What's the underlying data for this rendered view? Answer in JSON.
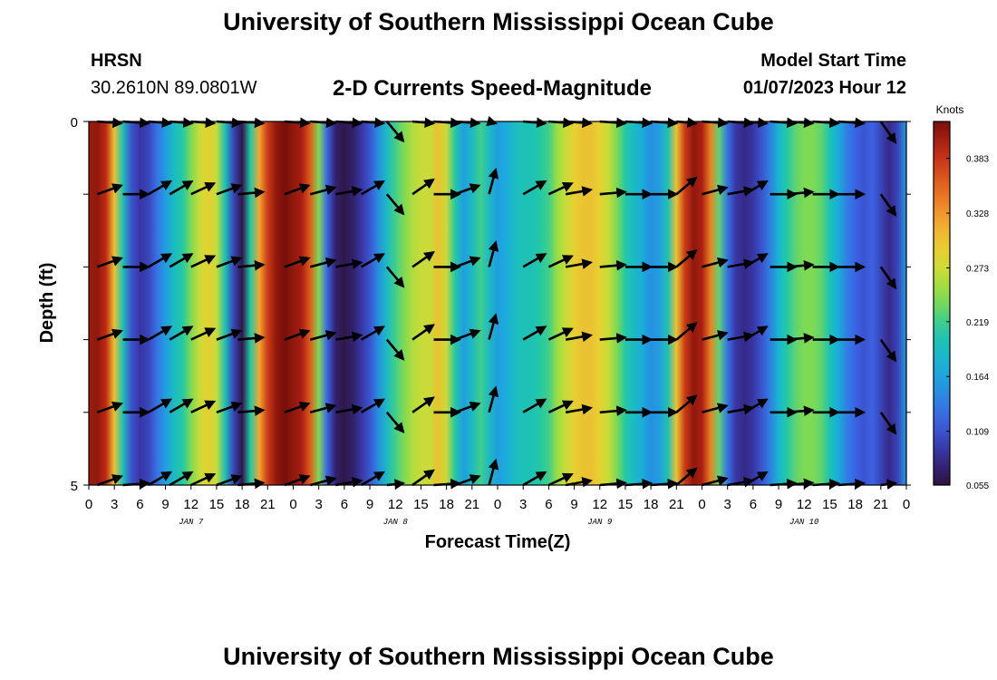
{
  "header": {
    "title": "University of Southern Mississippi Ocean Cube",
    "station": "HRSN",
    "coords": "30.2610N  89.0801W",
    "plot_title": "2-D Currents Speed-Magnitude",
    "model_start_label": "Model Start Time",
    "model_start_value": "01/07/2023 Hour 12"
  },
  "footer": {
    "title": "University of Southern Mississippi Ocean Cube"
  },
  "chart_data": {
    "type": "heatmap",
    "title": "2-D Currents Speed-Magnitude",
    "xlabel": "Forecast Time(Z)",
    "ylabel": "Depth (ft)",
    "ylim": [
      0,
      5
    ],
    "y_tick_labels": [
      "0",
      "5"
    ],
    "x_tick_labels": [
      "0",
      "3",
      "6",
      "9",
      "12",
      "15",
      "18",
      "21",
      "0",
      "3",
      "6",
      "9",
      "12",
      "15",
      "18",
      "21",
      "0",
      "3",
      "6",
      "9",
      "12",
      "15",
      "18",
      "21",
      "0",
      "3",
      "6",
      "9",
      "12",
      "15",
      "18",
      "21",
      "0"
    ],
    "day_labels": [
      {
        "label": "JAN 7",
        "hour": 12
      },
      {
        "label": "JAN 8",
        "hour": 36
      },
      {
        "label": "JAN 9",
        "hour": 60
      },
      {
        "label": "JAN 10",
        "hour": 84
      }
    ],
    "colorbar": {
      "units": "Knots",
      "min": 0.055,
      "max": 0.42,
      "tick_labels": [
        "0.383",
        "0.328",
        "0.273",
        "0.219",
        "0.164",
        "0.109",
        "0.055"
      ],
      "tick_values": [
        0.383,
        0.328,
        0.273,
        0.219,
        0.164,
        0.109,
        0.055
      ]
    },
    "speed_profile": {
      "hours": [
        0,
        1,
        2,
        3,
        4,
        5,
        6,
        7,
        8,
        9,
        10,
        11,
        12,
        13,
        14,
        15,
        16,
        17,
        18,
        19,
        20,
        21,
        22,
        23,
        24,
        25,
        26,
        27,
        28,
        29,
        30,
        31,
        32,
        33,
        34,
        35,
        36,
        37,
        38,
        39,
        40,
        41,
        42,
        43,
        44,
        45,
        46,
        47,
        48,
        49,
        50,
        51,
        52,
        53,
        54,
        55,
        56,
        57,
        58,
        59,
        60,
        61,
        62,
        63,
        64,
        65,
        66,
        67,
        68,
        69,
        70,
        71,
        72,
        73,
        74,
        75,
        76,
        77,
        78,
        79,
        80,
        81,
        82,
        83,
        84,
        85,
        86,
        87,
        88,
        89,
        90,
        91,
        92,
        93,
        94,
        95,
        96
      ],
      "knots": [
        0.405,
        0.41,
        0.39,
        0.3,
        0.2,
        0.11,
        0.09,
        0.1,
        0.13,
        0.16,
        0.19,
        0.21,
        0.24,
        0.27,
        0.29,
        0.27,
        0.2,
        0.1,
        0.06,
        0.21,
        0.32,
        0.38,
        0.41,
        0.42,
        0.41,
        0.4,
        0.36,
        0.24,
        0.12,
        0.07,
        0.06,
        0.07,
        0.09,
        0.11,
        0.15,
        0.19,
        0.22,
        0.24,
        0.26,
        0.27,
        0.27,
        0.3,
        0.27,
        0.21,
        0.16,
        0.19,
        0.22,
        0.19,
        0.16,
        0.17,
        0.19,
        0.2,
        0.2,
        0.21,
        0.22,
        0.25,
        0.27,
        0.29,
        0.3,
        0.3,
        0.29,
        0.27,
        0.24,
        0.21,
        0.19,
        0.17,
        0.15,
        0.16,
        0.2,
        0.3,
        0.38,
        0.41,
        0.4,
        0.34,
        0.23,
        0.13,
        0.09,
        0.08,
        0.09,
        0.11,
        0.14,
        0.18,
        0.21,
        0.23,
        0.24,
        0.24,
        0.23,
        0.2,
        0.17,
        0.14,
        0.12,
        0.11,
        0.12,
        0.1,
        0.08,
        0.1,
        0.16
      ]
    },
    "vectors": {
      "depths": [
        0,
        1,
        2,
        3,
        4,
        5
      ],
      "hours": [
        1,
        4,
        7,
        9.5,
        12,
        15,
        17.5,
        23,
        26,
        29,
        32,
        35,
        38,
        40.5,
        43,
        47,
        51,
        54,
        56,
        60,
        63,
        66,
        69,
        72,
        75,
        77,
        80,
        82,
        85,
        88,
        93
      ],
      "angles_deg": [
        20,
        0,
        30,
        30,
        25,
        20,
        5,
        20,
        15,
        10,
        30,
        -50,
        35,
        0,
        20,
        75,
        30,
        25,
        10,
        5,
        0,
        0,
        40,
        15,
        10,
        30,
        0,
        5,
        0,
        0,
        -55
      ]
    }
  }
}
